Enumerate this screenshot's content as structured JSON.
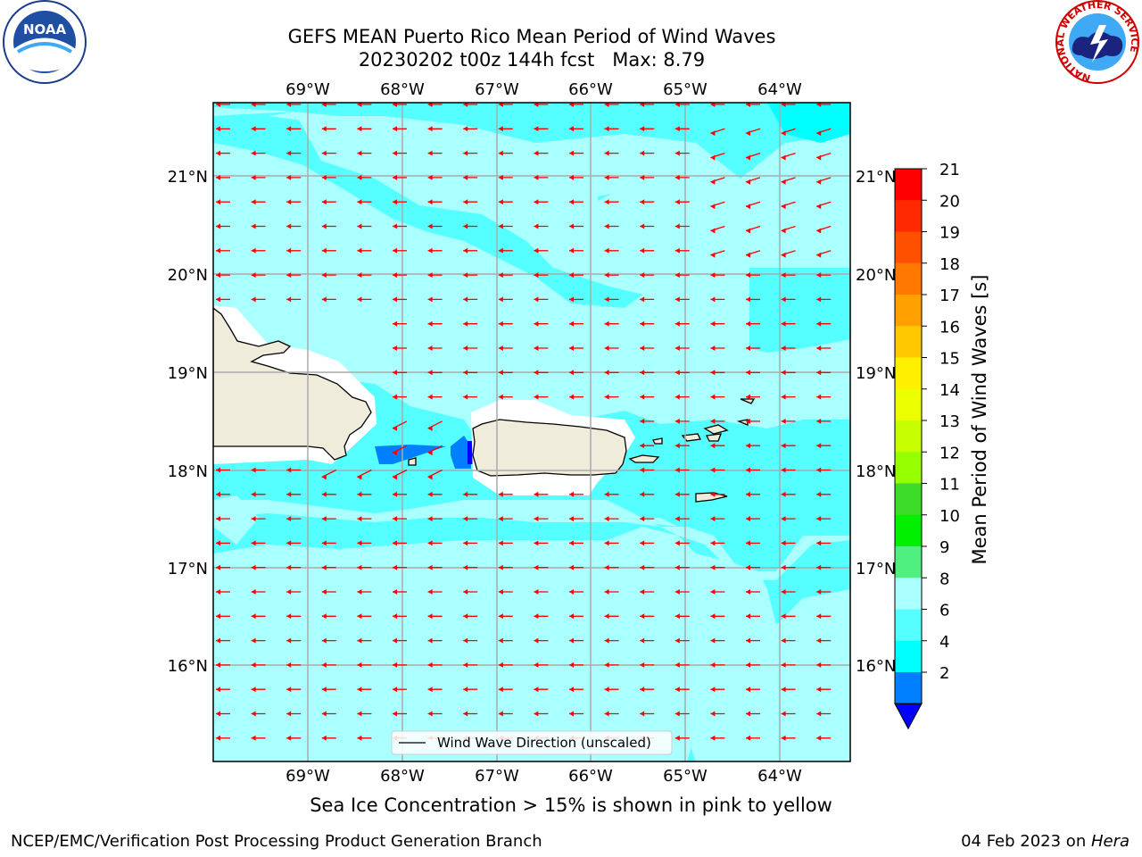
{
  "title": {
    "line1": "GEFS MEAN Puerto Rico Mean Period of Wind Waves",
    "line2": "20230202 t00z 144h fcst   Max: 8.79"
  },
  "logos": {
    "noaa_text": "NOAA",
    "nws_ring_text": "NATIONAL WEATHER SERVICE"
  },
  "map": {
    "lon_labels": [
      "69°W",
      "68°W",
      "67°W",
      "66°W",
      "65°W",
      "64°W"
    ],
    "lat_labels": [
      "21°N",
      "20°N",
      "19°N",
      "18°N",
      "17°N",
      "16°N"
    ],
    "arrow_color": "#ff0000",
    "land_color": "#efecdc",
    "legend_label": "Wind Wave Direction (unscaled)"
  },
  "colorbar": {
    "label": "Mean Period of Wind Waves [s]",
    "ticks": [
      "21",
      "20",
      "19",
      "18",
      "17",
      "16",
      "15",
      "14",
      "13",
      "12",
      "11",
      "10",
      "9",
      "8",
      "6",
      "4",
      "2"
    ],
    "colors_top_to_bottom": [
      "#ff0000",
      "#ff2800",
      "#ff5000",
      "#ff7800",
      "#ffa000",
      "#ffc800",
      "#fff000",
      "#ebff00",
      "#c8ff00",
      "#96ff00",
      "#3cdc28",
      "#00f000",
      "#50f080",
      "#aaffff",
      "#55ffff",
      "#00ffff",
      "#0080ff"
    ],
    "extend_color": "#0000ff"
  },
  "sea_colors": {
    "light": "#aaffff",
    "mid": "#55ffff",
    "cyan": "#00ffff",
    "blue": "#0080ff",
    "dark": "#0000ff"
  },
  "note": "Sea Ice Concentration > 15% is shown in pink to yellow",
  "footer": {
    "left": "NCEP/EMC/Verification Post Processing Product Generation Branch",
    "right_date": "04 Feb 2023 on ",
    "right_host": "Hera"
  }
}
